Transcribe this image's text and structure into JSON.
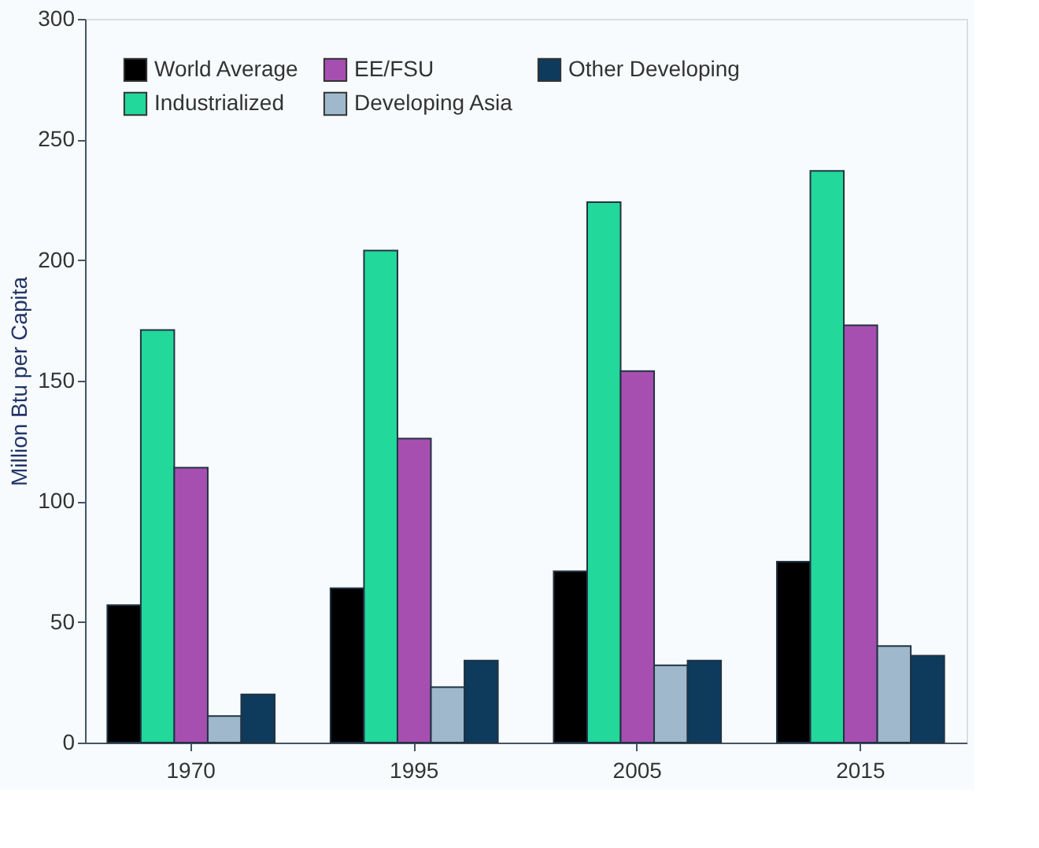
{
  "chart_data": {
    "type": "bar",
    "ylabel": "Million Btu per Capita",
    "categories": [
      "1970",
      "1995",
      "2005",
      "2015"
    ],
    "series": [
      {
        "name": "World Average",
        "color": "#000000",
        "values": [
          57,
          64,
          71,
          75
        ]
      },
      {
        "name": "Industrialized",
        "color": "#22d89a",
        "values": [
          171,
          204,
          224,
          237
        ]
      },
      {
        "name": "EE/FSU",
        "color": "#a64fb0",
        "values": [
          114,
          126,
          154,
          173
        ]
      },
      {
        "name": "Developing Asia",
        "color": "#9fb8cc",
        "values": [
          11,
          23,
          32,
          40
        ]
      },
      {
        "name": "Other Developing",
        "color": "#0e3a5c",
        "values": [
          20,
          34,
          34,
          36
        ]
      }
    ],
    "ylim": [
      0,
      300
    ],
    "yticks": [
      0,
      50,
      100,
      150,
      200,
      250,
      300
    ],
    "grid": false,
    "legend": "top left"
  }
}
